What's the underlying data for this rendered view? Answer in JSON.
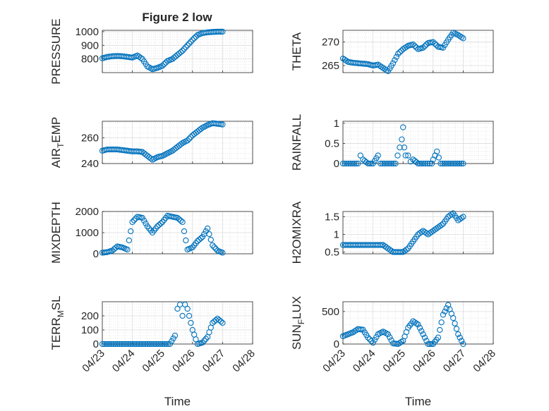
{
  "figure": {
    "title": "Figure 2 low",
    "marker_color": "#0072BD"
  },
  "chart_data": [
    {
      "type": "scatter",
      "ylabel": "PRESSURE",
      "xlabel": "",
      "x_ticks": [
        "04/23",
        "04/24",
        "04/25",
        "04/26",
        "04/27",
        "04/28"
      ],
      "y_ticks": [
        800,
        900,
        1000
      ],
      "ylim": [
        700,
        1010
      ],
      "grid": true,
      "series": [
        {
          "x": [
            "04/23 00:00",
            "04/23 04:00",
            "04/23 08:00",
            "04/23 12:00",
            "04/23 16:00",
            "04/23 20:00",
            "04/24 00:00",
            "04/24 04:00",
            "04/24 08:00",
            "04/24 12:00",
            "04/24 16:00",
            "04/24 20:00",
            "04/25 00:00",
            "04/25 04:00",
            "04/25 08:00",
            "04/25 12:00",
            "04/25 16:00",
            "04/25 20:00",
            "04/26 00:00",
            "04/26 04:00",
            "04/26 08:00",
            "04/26 12:00",
            "04/26 16:00",
            "04/26 20:00",
            "04/27 00:00"
          ],
          "y": [
            805,
            815,
            820,
            822,
            820,
            815,
            810,
            825,
            800,
            745,
            725,
            735,
            750,
            785,
            800,
            830,
            860,
            900,
            940,
            975,
            990,
            995,
            998,
            1000,
            1000
          ]
        }
      ]
    },
    {
      "type": "scatter",
      "ylabel": "THETA",
      "xlabel": "",
      "x_ticks": [
        "04/23",
        "04/24",
        "04/25",
        "04/26",
        "04/27",
        "04/28"
      ],
      "y_ticks": [
        265,
        270
      ],
      "ylim": [
        263.5,
        272.5
      ],
      "grid": true,
      "series": [
        {
          "x": [
            "04/23 00:00",
            "04/23 04:00",
            "04/23 08:00",
            "04/23 12:00",
            "04/23 16:00",
            "04/23 20:00",
            "04/24 00:00",
            "04/24 04:00",
            "04/24 08:00",
            "04/24 12:00",
            "04/24 16:00",
            "04/24 20:00",
            "04/25 00:00",
            "04/25 04:00",
            "04/25 08:00",
            "04/25 12:00",
            "04/25 16:00",
            "04/25 20:00",
            "04/26 00:00",
            "04/26 04:00",
            "04/26 08:00",
            "04/26 12:00",
            "04/26 16:00",
            "04/26 20:00",
            "04/27 00:00"
          ],
          "y": [
            266.5,
            265.8,
            265.6,
            265.5,
            265.4,
            265.3,
            265.0,
            265.2,
            264.5,
            263.8,
            265.5,
            267.5,
            268.5,
            269.2,
            269.5,
            268.5,
            268.8,
            269.8,
            270.0,
            269.0,
            268.8,
            270.5,
            272.0,
            271.5,
            270.8
          ]
        }
      ]
    },
    {
      "type": "scatter",
      "ylabel": "AIR_TEMP",
      "xlabel": "",
      "x_ticks": [
        "04/23",
        "04/24",
        "04/25",
        "04/26",
        "04/27",
        "04/28"
      ],
      "y_ticks": [
        240,
        260
      ],
      "ylim": [
        240,
        273
      ],
      "grid": true,
      "series": [
        {
          "x": [
            "04/23 00:00",
            "04/23 04:00",
            "04/23 08:00",
            "04/23 12:00",
            "04/23 16:00",
            "04/23 20:00",
            "04/24 00:00",
            "04/24 04:00",
            "04/24 08:00",
            "04/24 12:00",
            "04/24 16:00",
            "04/24 20:00",
            "04/25 00:00",
            "04/25 04:00",
            "04/25 08:00",
            "04/25 12:00",
            "04/25 16:00",
            "04/25 20:00",
            "04/26 00:00",
            "04/26 04:00",
            "04/26 08:00",
            "04/26 12:00",
            "04/26 16:00",
            "04/26 20:00",
            "04/27 00:00"
          ],
          "y": [
            250,
            251,
            251,
            251,
            250.5,
            250,
            249.5,
            249.5,
            249,
            246,
            243,
            245,
            246,
            248,
            250,
            253,
            256,
            258,
            262,
            265,
            268,
            270,
            271.5,
            271,
            270.5
          ]
        }
      ]
    },
    {
      "type": "scatter",
      "ylabel": "RAINFALL",
      "xlabel": "",
      "x_ticks": [
        "04/23",
        "04/24",
        "04/25",
        "04/26",
        "04/27",
        "04/28"
      ],
      "y_ticks": [
        0,
        0.5,
        1
      ],
      "ylim": [
        0,
        1.05
      ],
      "grid": true,
      "series": [
        {
          "x": [
            "04/23 00:00",
            "04/23 06:00",
            "04/23 12:00",
            "04/23 14:00",
            "04/23 16:00",
            "04/23 20:00",
            "04/24 00:00",
            "04/24 04:00",
            "04/24 06:00",
            "04/24 12:00",
            "04/24 18:00",
            "04/24 23:00",
            "04/25 00:00",
            "04/25 01:00",
            "04/25 02:00",
            "04/25 04:00",
            "04/25 06:00",
            "04/25 08:00",
            "04/25 12:00",
            "04/25 18:00",
            "04/25 23:00",
            "04/26 00:00",
            "04/26 03:00",
            "04/26 06:00",
            "04/26 12:00",
            "04/26 18:00",
            "04/27 00:00"
          ],
          "y": [
            0,
            0,
            0,
            0.2,
            0.1,
            0,
            0,
            0.2,
            0,
            0,
            0,
            0.6,
            0.9,
            0.4,
            0.2,
            0.2,
            0.05,
            0.1,
            0,
            0,
            0,
            0.1,
            0.3,
            0,
            0,
            0,
            0
          ]
        }
      ]
    },
    {
      "type": "scatter",
      "ylabel": "MIXDEPTH",
      "xlabel": "",
      "x_ticks": [
        "04/23",
        "04/24",
        "04/25",
        "04/26",
        "04/27",
        "04/28"
      ],
      "y_ticks": [
        0,
        1000,
        2000
      ],
      "ylim": [
        0,
        2000
      ],
      "grid": true,
      "series": [
        {
          "x": [
            "04/23 00:00",
            "04/23 04:00",
            "04/23 08:00",
            "04/23 12:00",
            "04/23 16:00",
            "04/23 20:00",
            "04/24 00:00",
            "04/24 04:00",
            "04/24 08:00",
            "04/24 12:00",
            "04/24 16:00",
            "04/24 20:00",
            "04/25 00:00",
            "04/25 04:00",
            "04/25 08:00",
            "04/25 12:00",
            "04/25 16:00",
            "04/25 20:00",
            "04/26 00:00",
            "04/26 04:00",
            "04/26 08:00",
            "04/26 12:00",
            "04/26 16:00",
            "04/26 20:00",
            "04/27 00:00"
          ],
          "y": [
            50,
            80,
            150,
            350,
            300,
            200,
            1500,
            1750,
            1700,
            1300,
            1000,
            1300,
            1500,
            1800,
            1750,
            1700,
            1500,
            200,
            300,
            600,
            800,
            1200,
            400,
            150,
            50
          ]
        }
      ]
    },
    {
      "type": "scatter",
      "ylabel": "H2OMIXRA",
      "xlabel": "",
      "x_ticks": [
        "04/23",
        "04/24",
        "04/25",
        "04/26",
        "04/27",
        "04/28"
      ],
      "y_ticks": [
        0.5,
        1,
        1.5
      ],
      "ylim": [
        0.45,
        1.65
      ],
      "grid": true,
      "series": [
        {
          "x": [
            "04/23 00:00",
            "04/23 04:00",
            "04/23 08:00",
            "04/23 12:00",
            "04/23 16:00",
            "04/23 20:00",
            "04/24 00:00",
            "04/24 04:00",
            "04/24 08:00",
            "04/24 12:00",
            "04/24 16:00",
            "04/24 20:00",
            "04/25 00:00",
            "04/25 04:00",
            "04/25 08:00",
            "04/25 12:00",
            "04/25 16:00",
            "04/25 20:00",
            "04/26 00:00",
            "04/26 04:00",
            "04/26 08:00",
            "04/26 12:00",
            "04/26 16:00",
            "04/26 20:00",
            "04/27 00:00"
          ],
          "y": [
            0.7,
            0.7,
            0.7,
            0.7,
            0.7,
            0.7,
            0.7,
            0.7,
            0.7,
            0.6,
            0.5,
            0.5,
            0.5,
            0.6,
            0.8,
            1.0,
            1.1,
            1.0,
            1.1,
            1.2,
            1.3,
            1.5,
            1.6,
            1.4,
            1.5
          ]
        }
      ]
    },
    {
      "type": "scatter",
      "ylabel": "TERR_MSL",
      "xlabel": "Time",
      "x_ticks": [
        "04/23",
        "04/24",
        "04/25",
        "04/26",
        "04/27",
        "04/28"
      ],
      "y_ticks": [
        0,
        100,
        200
      ],
      "ylim": [
        0,
        300
      ],
      "grid": true,
      "series": [
        {
          "x": [
            "04/23 00:00",
            "04/23 06:00",
            "04/23 12:00",
            "04/23 18:00",
            "04/24 00:00",
            "04/24 06:00",
            "04/24 12:00",
            "04/24 18:00",
            "04/25 00:00",
            "04/25 06:00",
            "04/25 10:00",
            "04/25 12:00",
            "04/25 14:00",
            "04/25 16:00",
            "04/25 18:00",
            "04/25 20:00",
            "04/26 00:00",
            "04/26 04:00",
            "04/26 08:00",
            "04/26 12:00",
            "04/26 16:00",
            "04/26 20:00",
            "04/27 00:00"
          ],
          "y": [
            0,
            0,
            0,
            0,
            0,
            0,
            0,
            0,
            0,
            0,
            60,
            250,
            280,
            200,
            280,
            250,
            100,
            0,
            10,
            50,
            150,
            180,
            150
          ]
        }
      ]
    },
    {
      "type": "scatter",
      "ylabel": "SUN_FLUX",
      "xlabel": "Time",
      "x_ticks": [
        "04/23",
        "04/24",
        "04/25",
        "04/26",
        "04/27",
        "04/28"
      ],
      "y_ticks": [
        0,
        500
      ],
      "ylim": [
        0,
        650
      ],
      "grid": true,
      "series": [
        {
          "x": [
            "04/23 00:00",
            "04/23 04:00",
            "04/23 08:00",
            "04/23 12:00",
            "04/23 16:00",
            "04/23 20:00",
            "04/24 00:00",
            "04/24 04:00",
            "04/24 08:00",
            "04/24 12:00",
            "04/24 16:00",
            "04/24 20:00",
            "04/25 00:00",
            "04/25 04:00",
            "04/25 08:00",
            "04/25 12:00",
            "04/25 16:00",
            "04/25 20:00",
            "04/26 00:00",
            "04/26 04:00",
            "04/26 08:00",
            "04/26 12:00",
            "04/26 16:00",
            "04/26 20:00",
            "04/27 00:00"
          ],
          "y": [
            120,
            150,
            180,
            230,
            220,
            100,
            20,
            150,
            190,
            150,
            10,
            0,
            50,
            250,
            350,
            300,
            150,
            0,
            0,
            100,
            450,
            600,
            400,
            150,
            0
          ]
        }
      ]
    }
  ]
}
